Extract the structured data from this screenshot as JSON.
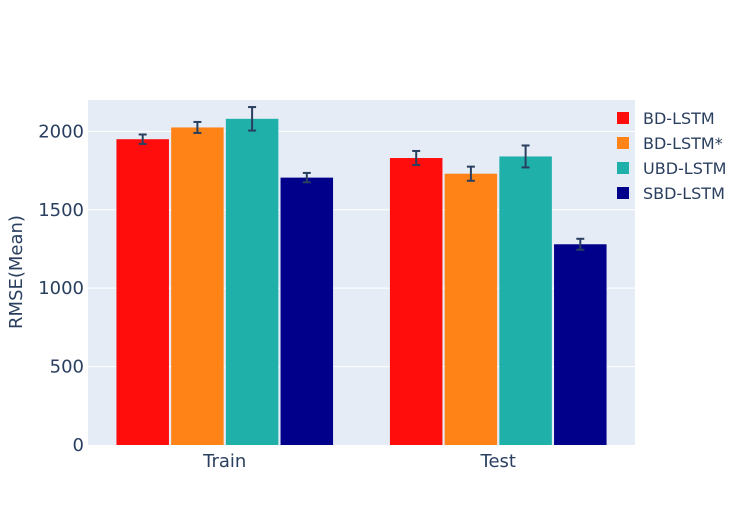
{
  "chart_data": {
    "type": "bar",
    "categories": [
      "Train",
      "Test"
    ],
    "ylabel": "RMSE(Mean)",
    "xlabel": "",
    "ylim": [
      0,
      2200
    ],
    "yticks": [
      0,
      500,
      1000,
      1500,
      2000
    ],
    "grid": true,
    "legend_position": "top-right",
    "plot_background": "#e5ecf6",
    "series": [
      {
        "name": "BD-LSTM",
        "color": "#ff0d0d",
        "values": [
          1950,
          1830
        ],
        "errors": [
          30,
          45
        ]
      },
      {
        "name": "BD-LSTM*",
        "color": "#ff8317",
        "values": [
          2025,
          1730
        ],
        "errors": [
          35,
          45
        ]
      },
      {
        "name": "UBD-LSTM",
        "color": "#1eb0a9",
        "values": [
          2080,
          1840
        ],
        "errors": [
          75,
          70
        ]
      },
      {
        "name": "SBD-LSTM",
        "color": "#00008b",
        "values": [
          1705,
          1280
        ],
        "errors": [
          30,
          35
        ]
      }
    ]
  }
}
